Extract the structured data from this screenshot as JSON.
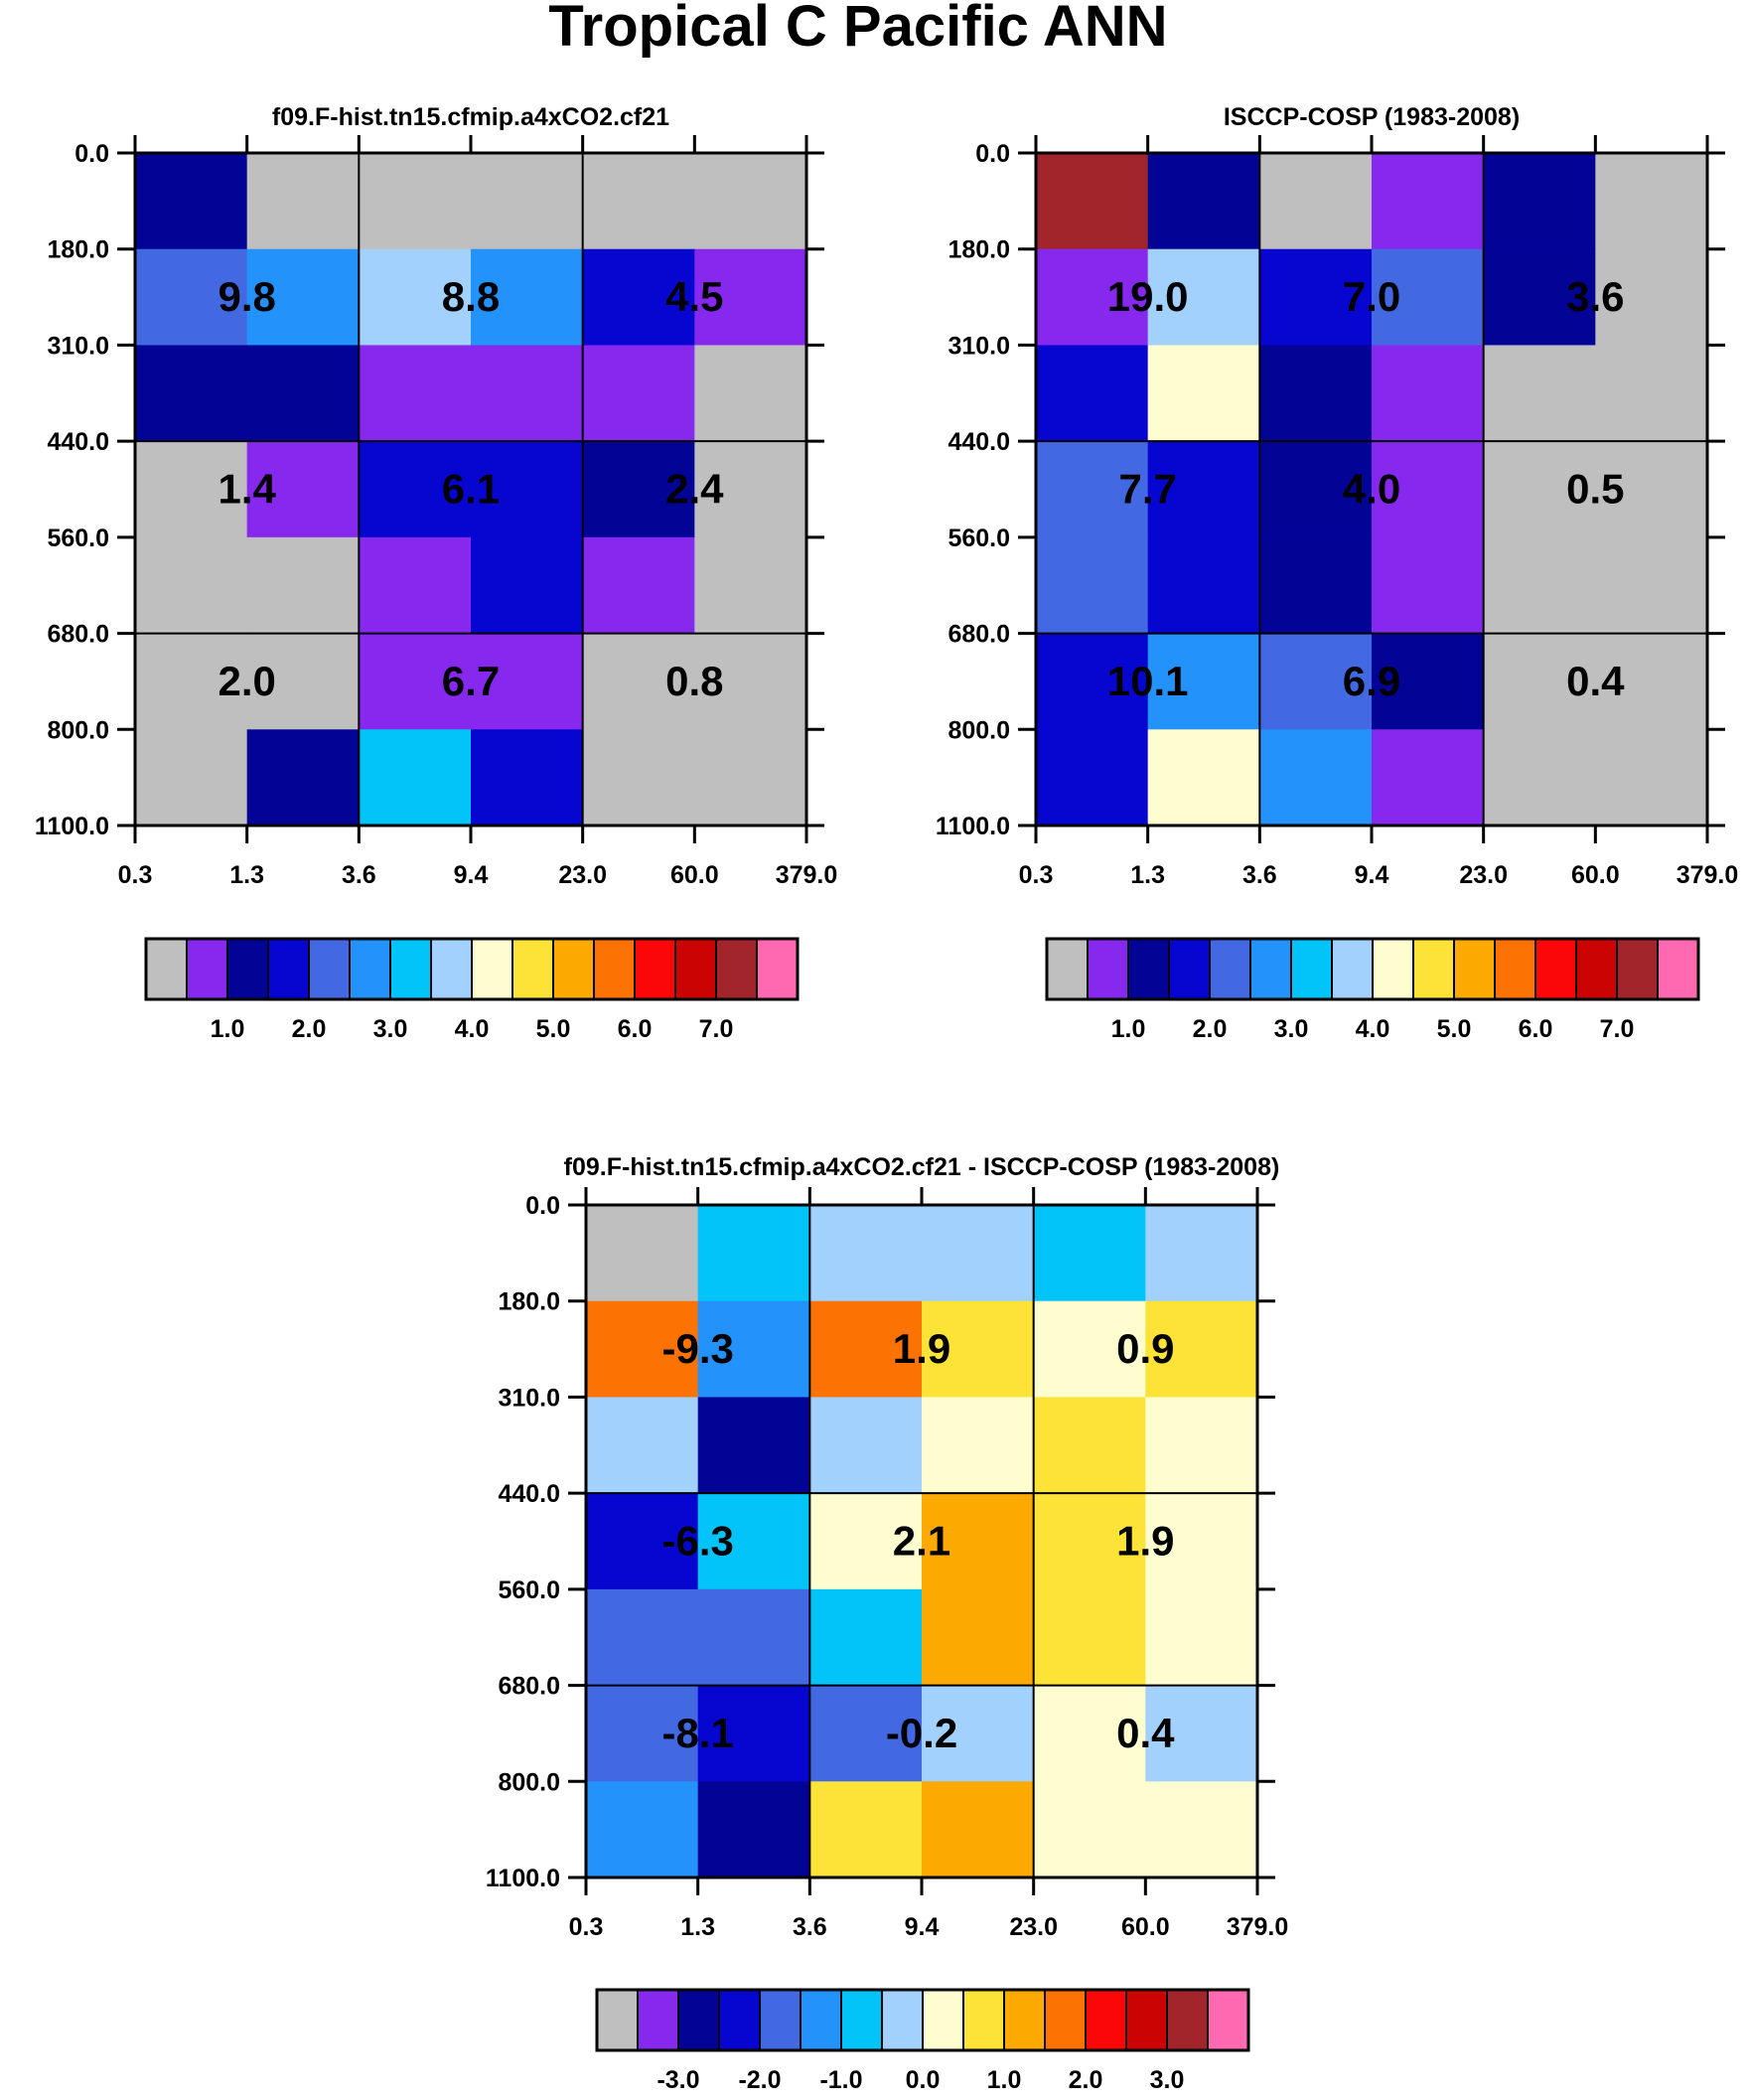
{
  "title": "Tropical C Pacific ANN",
  "palette": [
    "#bfbfbf",
    "#8628ee",
    "#030396",
    "#0606d0",
    "#4369e2",
    "#2492fb",
    "#03c4f9",
    "#a2d1fd",
    "#fdfdcf",
    "#fde237",
    "#fca902",
    "#fd7303",
    "#fb0707",
    "#cb0303",
    "#a1252b",
    "#fe69b2"
  ],
  "chart_data": [
    {
      "type": "heatmap",
      "title": "f09.F-hist.tn15.cfmip.a4xCO2.cf21",
      "x_tick_labels": [
        "0.3",
        "1.3",
        "3.6",
        "9.4",
        "23.0",
        "60.0",
        "379.0"
      ],
      "y_tick_labels": [
        "0.0",
        "180.0",
        "310.0",
        "440.0",
        "560.0",
        "680.0",
        "800.0",
        "1100.0"
      ],
      "cell_color_index": [
        [
          2,
          0,
          0,
          0,
          0,
          0
        ],
        [
          4,
          5,
          7,
          5,
          3,
          1
        ],
        [
          2,
          2,
          1,
          1,
          1,
          0
        ],
        [
          0,
          1,
          3,
          3,
          2,
          0
        ],
        [
          0,
          0,
          1,
          3,
          1,
          0
        ],
        [
          0,
          0,
          1,
          1,
          0,
          0
        ],
        [
          0,
          2,
          6,
          3,
          0,
          0
        ]
      ],
      "block_values": [
        [
          "9.8",
          "8.8",
          "4.5"
        ],
        [
          "1.4",
          "6.1",
          "2.4"
        ],
        [
          "2.0",
          "6.7",
          "0.8"
        ]
      ],
      "colorbar": {
        "labels": [
          "1.0",
          "2.0",
          "3.0",
          "4.0",
          "5.0",
          "6.0",
          "7.0"
        ],
        "label_start_box": 2
      }
    },
    {
      "type": "heatmap",
      "title": "ISCCP-COSP (1983-2008)",
      "x_tick_labels": [
        "0.3",
        "1.3",
        "3.6",
        "9.4",
        "23.0",
        "60.0",
        "379.0"
      ],
      "y_tick_labels": [
        "0.0",
        "180.0",
        "310.0",
        "440.0",
        "560.0",
        "680.0",
        "800.0",
        "1100.0"
      ],
      "cell_color_index": [
        [
          14,
          2,
          0,
          1,
          2,
          0
        ],
        [
          1,
          7,
          3,
          4,
          2,
          0
        ],
        [
          3,
          8,
          2,
          1,
          0,
          0
        ],
        [
          4,
          3,
          2,
          1,
          0,
          0
        ],
        [
          4,
          3,
          2,
          1,
          0,
          0
        ],
        [
          3,
          5,
          4,
          2,
          0,
          0
        ],
        [
          3,
          8,
          5,
          1,
          0,
          0
        ]
      ],
      "block_values": [
        [
          "19.0",
          "7.0",
          "3.6"
        ],
        [
          "7.7",
          "4.0",
          "0.5"
        ],
        [
          "10.1",
          "6.9",
          "0.4"
        ]
      ],
      "colorbar": {
        "labels": [
          "1.0",
          "2.0",
          "3.0",
          "4.0",
          "5.0",
          "6.0",
          "7.0"
        ],
        "label_start_box": 2
      }
    },
    {
      "type": "heatmap",
      "title": "f09.F-hist.tn15.cfmip.a4xCO2.cf21 - ISCCP-COSP (1983-2008)",
      "x_tick_labels": [
        "0.3",
        "1.3",
        "3.6",
        "9.4",
        "23.0",
        "60.0",
        "379.0"
      ],
      "y_tick_labels": [
        "0.0",
        "180.0",
        "310.0",
        "440.0",
        "560.0",
        "680.0",
        "800.0",
        "1100.0"
      ],
      "cell_color_index": [
        [
          0,
          6,
          7,
          7,
          6,
          7
        ],
        [
          11,
          5,
          11,
          9,
          8,
          9
        ],
        [
          7,
          2,
          7,
          8,
          9,
          8
        ],
        [
          3,
          6,
          8,
          10,
          9,
          8
        ],
        [
          4,
          4,
          6,
          10,
          9,
          8
        ],
        [
          4,
          3,
          4,
          7,
          8,
          7
        ],
        [
          5,
          2,
          9,
          10,
          8,
          8
        ]
      ],
      "block_values": [
        [
          "-9.3",
          "1.9",
          "0.9"
        ],
        [
          "-6.3",
          "2.1",
          "1.9"
        ],
        [
          "-8.1",
          "-0.2",
          "0.4"
        ]
      ],
      "colorbar": {
        "labels": [
          "-3.0",
          "-2.0",
          "-1.0",
          "0.0",
          "1.0",
          "2.0",
          "3.0"
        ],
        "label_start_box": 2
      }
    }
  ]
}
